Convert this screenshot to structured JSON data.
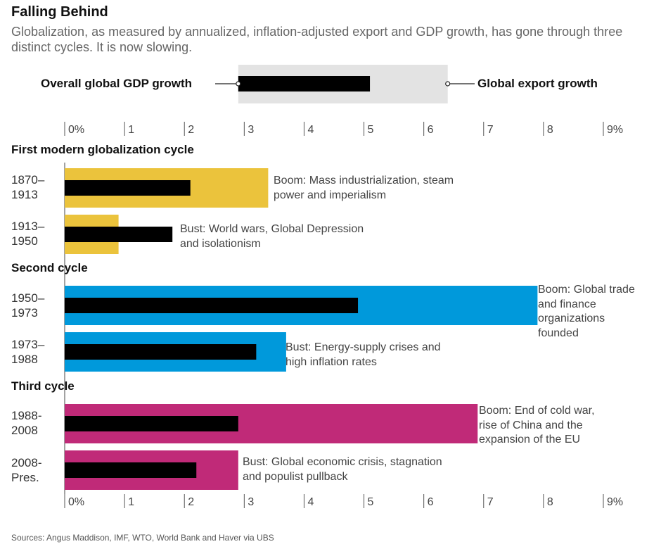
{
  "title": "Falling Behind",
  "subtitle": "Globalization, as measured by annualized, inflation-adjusted export and GDP growth, has gone through three distinct cycles. It is now slowing.",
  "legend": {
    "gdp_label": "Overall global GDP growth",
    "export_label": "Global export growth",
    "gdp_color": "#000000",
    "export_color": "#e3e3e3"
  },
  "axis_ticks": [
    "0%",
    "1",
    "2",
    "3",
    "4",
    "5",
    "6",
    "7",
    "8",
    "9%"
  ],
  "sources": "Sources: Angus Maddison, IMF, WTO, World Bank and Haver via UBS",
  "chart_data": {
    "type": "bar",
    "orientation": "horizontal",
    "xlim": [
      0,
      9
    ],
    "unit": "%",
    "sections": [
      {
        "title": "First modern globalization cycle",
        "color": "#ebc33c",
        "rows": [
          {
            "period_line1": "1870–",
            "period_line2": "1913",
            "export": 3.4,
            "gdp": 2.1,
            "note_line1": "Boom: Mass industrialization, steam",
            "note_line2": "power and imperialism",
            "note_line3": "",
            "note_line4": ""
          },
          {
            "period_line1": "1913–",
            "period_line2": "1950",
            "export": 0.9,
            "gdp": 1.8,
            "note_line1": "Bust: World wars, Global Depression",
            "note_line2": "and isolationism",
            "note_line3": "",
            "note_line4": ""
          }
        ]
      },
      {
        "title": "Second cycle",
        "color": "#0099db",
        "rows": [
          {
            "period_line1": "1950–",
            "period_line2": "1973",
            "export": 7.9,
            "gdp": 4.9,
            "note_line1": "Boom: Global trade",
            "note_line2": "and finance",
            "note_line3": "organizations",
            "note_line4": "founded"
          },
          {
            "period_line1": "1973–",
            "period_line2": "1988",
            "export": 3.7,
            "gdp": 3.2,
            "note_line1": "Bust: Energy-supply crises and",
            "note_line2": "high inflation rates",
            "note_line3": "",
            "note_line4": ""
          }
        ]
      },
      {
        "title": "Third cycle",
        "color": "#c02a78",
        "rows": [
          {
            "period_line1": "1988-",
            "period_line2": "2008",
            "export": 6.9,
            "gdp": 2.9,
            "note_line1": "Boom: End of cold war,",
            "note_line2": "rise of China and the",
            "note_line3": "expansion of the EU",
            "note_line4": ""
          },
          {
            "period_line1": "2008-",
            "period_line2": "Pres.",
            "export": 2.9,
            "gdp": 2.2,
            "note_line1": "Bust: Global economic crisis, stagnation",
            "note_line2": "and populist pullback",
            "note_line3": "",
            "note_line4": ""
          }
        ]
      }
    ],
    "legend_example": {
      "export": 6.4,
      "gdp": 5.1,
      "export_start": 2.9,
      "gdp_start": 2.9
    }
  }
}
